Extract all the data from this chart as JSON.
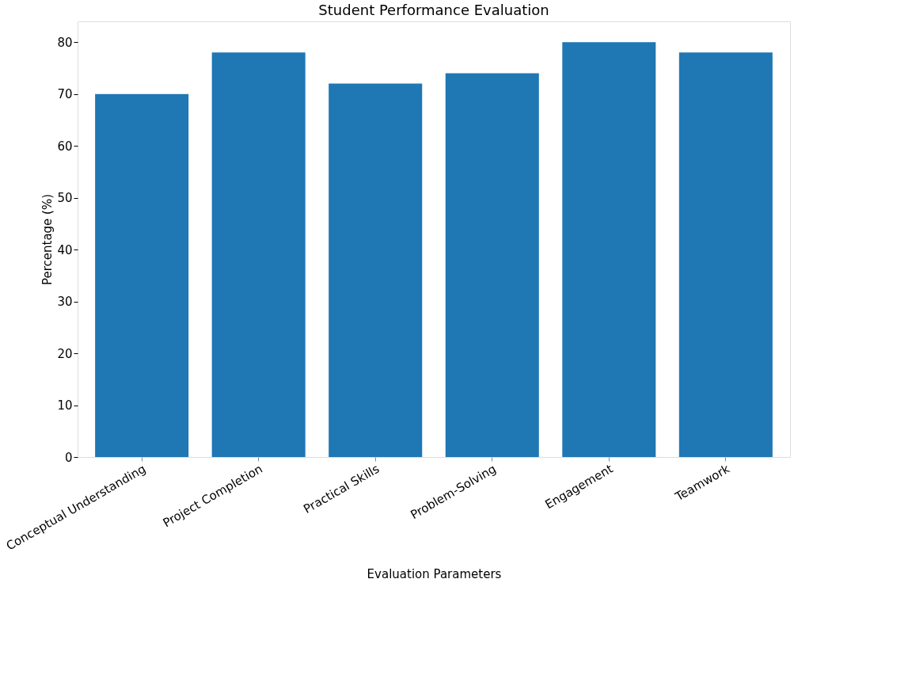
{
  "chart_data": {
    "type": "bar",
    "title": "Student Performance Evaluation",
    "xlabel": "Evaluation Parameters",
    "ylabel": "Percentage (%)",
    "categories": [
      "Conceptual Understanding",
      "Project Completion",
      "Practical Skills",
      "Problem-Solving",
      "Engagement",
      "Teamwork"
    ],
    "values": [
      70,
      78,
      72,
      74,
      80,
      78
    ],
    "color": "#1f77b4",
    "ylim": [
      0,
      84
    ],
    "yticks": [
      0,
      10,
      20,
      30,
      40,
      50,
      60,
      70,
      80
    ],
    "grid": false
  }
}
